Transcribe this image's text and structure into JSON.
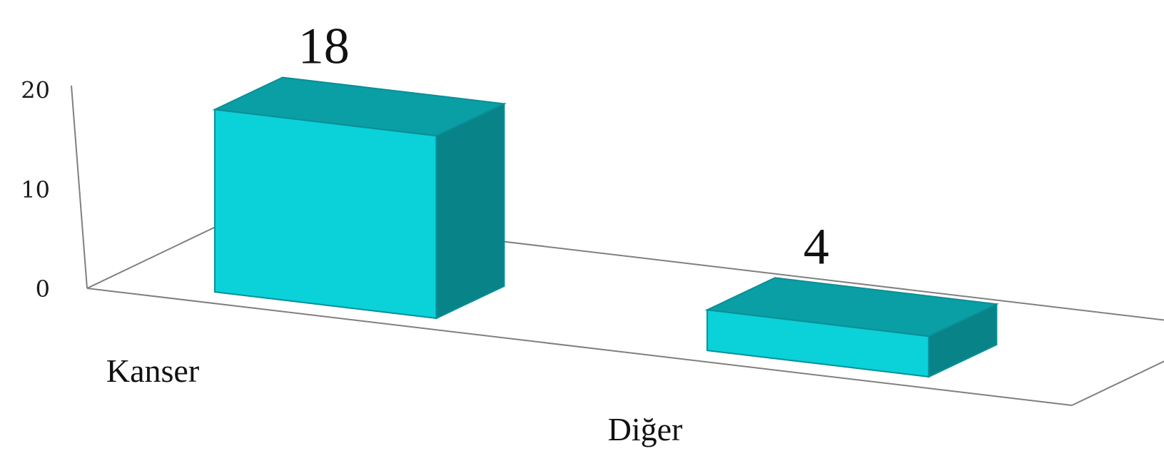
{
  "chart_data": {
    "type": "bar",
    "style": "3d-column",
    "categories": [
      "Kanser",
      "Diğer"
    ],
    "values": [
      18,
      4
    ],
    "data_labels": [
      "18",
      "4"
    ],
    "ylim": [
      0,
      20
    ],
    "yticks": [
      "0",
      "10",
      "20"
    ],
    "grid": false,
    "legend": "none",
    "colors": {
      "front": "#0bd1d9",
      "top": "#0a9ea5",
      "side": "#088489",
      "edge": "#0a8f96",
      "axis": "#808080"
    }
  }
}
